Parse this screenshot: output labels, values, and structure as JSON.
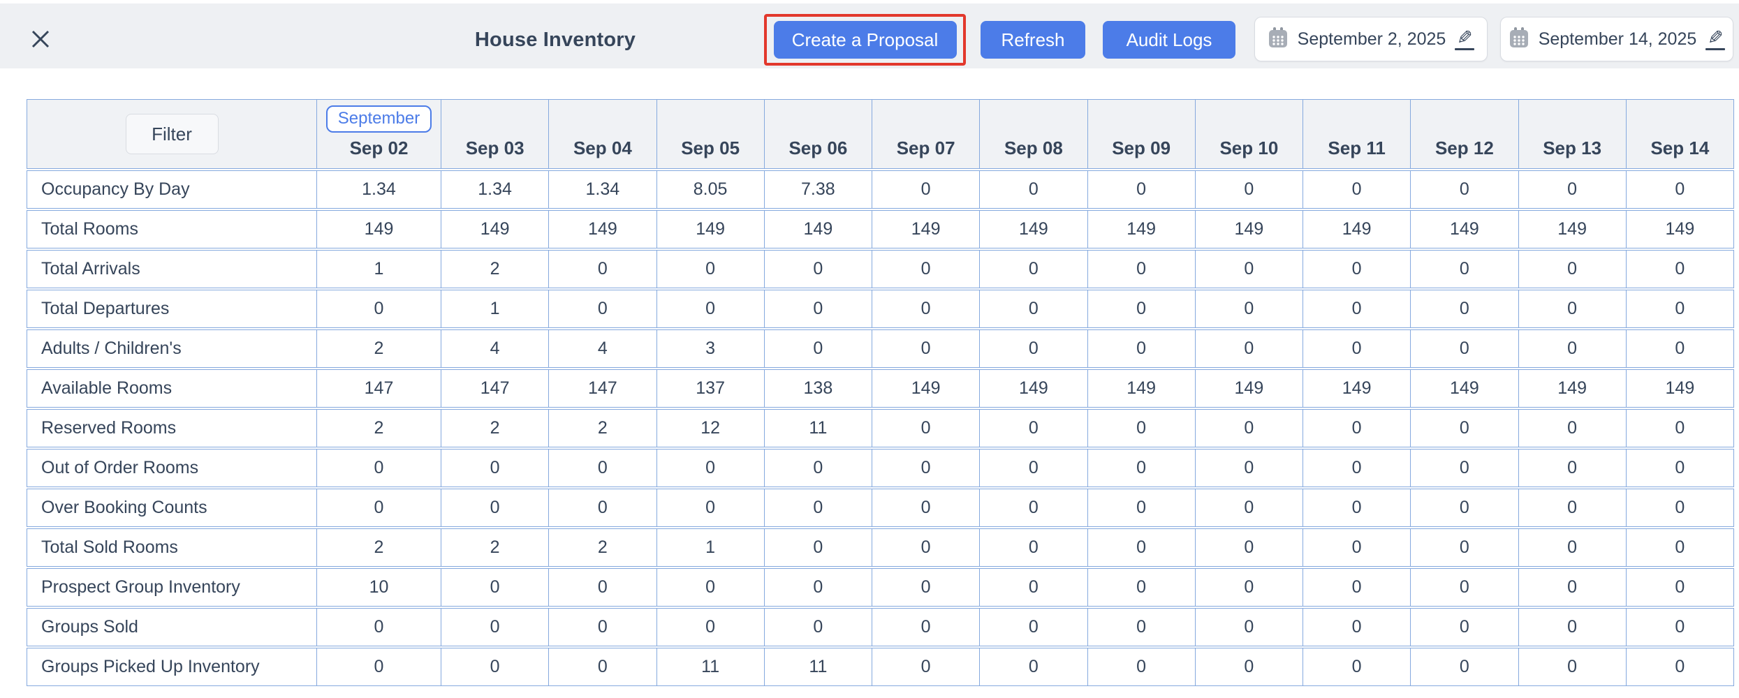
{
  "header": {
    "title": "House Inventory",
    "create_proposal_label": "Create a Proposal",
    "refresh_label": "Refresh",
    "audit_logs_label": "Audit Logs",
    "start_date": "September 2, 2025",
    "end_date": "September 14, 2025"
  },
  "table": {
    "filter_label": "Filter",
    "month_badge": "September",
    "columns": [
      "Sep 02",
      "Sep 03",
      "Sep 04",
      "Sep 05",
      "Sep 06",
      "Sep 07",
      "Sep 08",
      "Sep 09",
      "Sep 10",
      "Sep 11",
      "Sep 12",
      "Sep 13",
      "Sep 14"
    ],
    "rows": [
      {
        "label": "Occupancy By Day",
        "values": [
          "1.34",
          "1.34",
          "1.34",
          "8.05",
          "7.38",
          "0",
          "0",
          "0",
          "0",
          "0",
          "0",
          "0",
          "0"
        ]
      },
      {
        "label": "Total Rooms",
        "values": [
          "149",
          "149",
          "149",
          "149",
          "149",
          "149",
          "149",
          "149",
          "149",
          "149",
          "149",
          "149",
          "149"
        ]
      },
      {
        "label": "Total Arrivals",
        "values": [
          "1",
          "2",
          "0",
          "0",
          "0",
          "0",
          "0",
          "0",
          "0",
          "0",
          "0",
          "0",
          "0"
        ]
      },
      {
        "label": "Total Departures",
        "values": [
          "0",
          "1",
          "0",
          "0",
          "0",
          "0",
          "0",
          "0",
          "0",
          "0",
          "0",
          "0",
          "0"
        ]
      },
      {
        "label": "Adults / Children's",
        "values": [
          "2",
          "4",
          "4",
          "3",
          "0",
          "0",
          "0",
          "0",
          "0",
          "0",
          "0",
          "0",
          "0"
        ]
      },
      {
        "label": "Available Rooms",
        "values": [
          "147",
          "147",
          "147",
          "137",
          "138",
          "149",
          "149",
          "149",
          "149",
          "149",
          "149",
          "149",
          "149"
        ]
      },
      {
        "label": "Reserved Rooms",
        "values": [
          "2",
          "2",
          "2",
          "12",
          "11",
          "0",
          "0",
          "0",
          "0",
          "0",
          "0",
          "0",
          "0"
        ]
      },
      {
        "label": "Out of Order Rooms",
        "values": [
          "0",
          "0",
          "0",
          "0",
          "0",
          "0",
          "0",
          "0",
          "0",
          "0",
          "0",
          "0",
          "0"
        ]
      },
      {
        "label": "Over Booking Counts",
        "values": [
          "0",
          "0",
          "0",
          "0",
          "0",
          "0",
          "0",
          "0",
          "0",
          "0",
          "0",
          "0",
          "0"
        ]
      },
      {
        "label": "Total Sold Rooms",
        "values": [
          "2",
          "2",
          "2",
          "1",
          "0",
          "0",
          "0",
          "0",
          "0",
          "0",
          "0",
          "0",
          "0"
        ]
      },
      {
        "label": "Prospect Group Inventory",
        "values": [
          "10",
          "0",
          "0",
          "0",
          "0",
          "0",
          "0",
          "0",
          "0",
          "0",
          "0",
          "0",
          "0"
        ]
      },
      {
        "label": "Groups Sold",
        "values": [
          "0",
          "0",
          "0",
          "0",
          "0",
          "0",
          "0",
          "0",
          "0",
          "0",
          "0",
          "0",
          "0"
        ]
      },
      {
        "label": "Groups Picked Up Inventory",
        "values": [
          "0",
          "0",
          "0",
          "11",
          "11",
          "0",
          "0",
          "0",
          "0",
          "0",
          "0",
          "0",
          "0"
        ]
      }
    ]
  },
  "colors": {
    "accent": "#4c7ce8",
    "highlight_red": "#e2382c",
    "table_border": "#85a9de",
    "topbar_bg": "#eef0f3",
    "table_header_bg": "#f0f2f5",
    "text_dark": "#36455a",
    "icon_gray": "#a0a7b1",
    "control_border": "#d9dce2"
  }
}
